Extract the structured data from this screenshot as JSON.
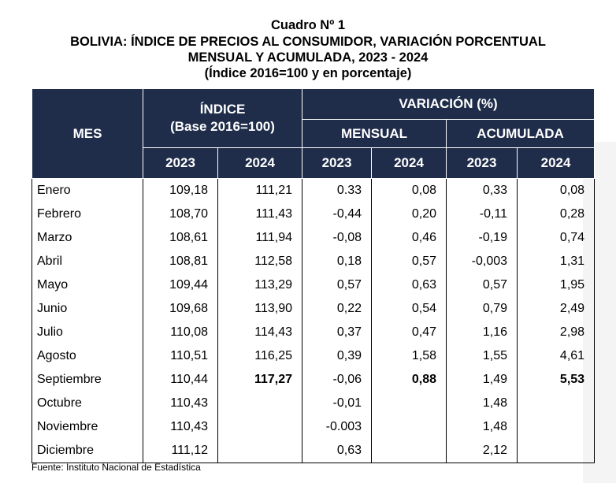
{
  "title": {
    "line1": "Cuadro Nº 1",
    "line2": "BOLIVIA: ÍNDICE DE PRECIOS AL CONSUMIDOR, VARIACIÓN PORCENTUAL",
    "line3": "MENSUAL Y ACUMULADA, 2023 - 2024",
    "line4": "(Índice 2016=100 y en porcentaje)"
  },
  "header": {
    "mes": "MES",
    "indice": "ÍNDICE",
    "indice_base": "(Base 2016=100)",
    "variacion": "VARIACIÓN (%)",
    "mensual": "MENSUAL",
    "acumulada": "ACUMULADA",
    "years": [
      "2023",
      "2024",
      "2023",
      "2024",
      "2023",
      "2024"
    ]
  },
  "rows": [
    {
      "mes": "Enero",
      "i23": "109,18",
      "i24": "111,21",
      "m23": "0.33",
      "m24": "0,08",
      "a23": "0,33",
      "a24": "0,08"
    },
    {
      "mes": "Febrero",
      "i23": "108,70",
      "i24": "111,43",
      "m23": "-0,44",
      "m24": "0,20",
      "a23": "-0,11",
      "a24": "0,28"
    },
    {
      "mes": "Marzo",
      "i23": "108,61",
      "i24": "111,94",
      "m23": "-0,08",
      "m24": "0,46",
      "a23": "-0,19",
      "a24": "0,74"
    },
    {
      "mes": "Abril",
      "i23": "108,81",
      "i24": "112,58",
      "m23": "0,18",
      "m24": "0,57",
      "a23": "-0,003",
      "a24": "1,31"
    },
    {
      "mes": "Mayo",
      "i23": "109,44",
      "i24": "113,29",
      "m23": "0,57",
      "m24": "0,63",
      "a23": "0,57",
      "a24": "1,95"
    },
    {
      "mes": "Junio",
      "i23": "109,68",
      "i24": "113,90",
      "m23": "0,22",
      "m24": "0,54",
      "a23": "0,79",
      "a24": "2,49"
    },
    {
      "mes": "Julio",
      "i23": "110,08",
      "i24": "114,43",
      "m23": "0,37",
      "m24": "0,47",
      "a23": "1,16",
      "a24": "2,98"
    },
    {
      "mes": "Agosto",
      "i23": "110,51",
      "i24": "116,25",
      "m23": "0,39",
      "m24": "1,58",
      "a23": "1,55",
      "a24": "4,61"
    },
    {
      "mes": "Septiembre",
      "i23": "110,44",
      "i24": "117,27",
      "m23": "-0,06",
      "m24": "0,88",
      "a23": "1,49",
      "a24": "5,53"
    },
    {
      "mes": "Octubre",
      "i23": "110,43",
      "i24": "",
      "m23": "-0,01",
      "m24": "",
      "a23": "1,48",
      "a24": ""
    },
    {
      "mes": "Noviembre",
      "i23": "110,43",
      "i24": "",
      "m23": "-0.003",
      "m24": "",
      "a23": "1,48",
      "a24": ""
    },
    {
      "mes": "Diciembre",
      "i23": "111,12",
      "i24": "",
      "m23": "0,63",
      "m24": "",
      "a23": "2,12",
      "a24": ""
    }
  ],
  "bold_row_index": 8,
  "source": "Fuente: Instituto Nacional de Estadística",
  "colors": {
    "header_bg": "#1f2d4a",
    "header_text": "#ffffff"
  }
}
